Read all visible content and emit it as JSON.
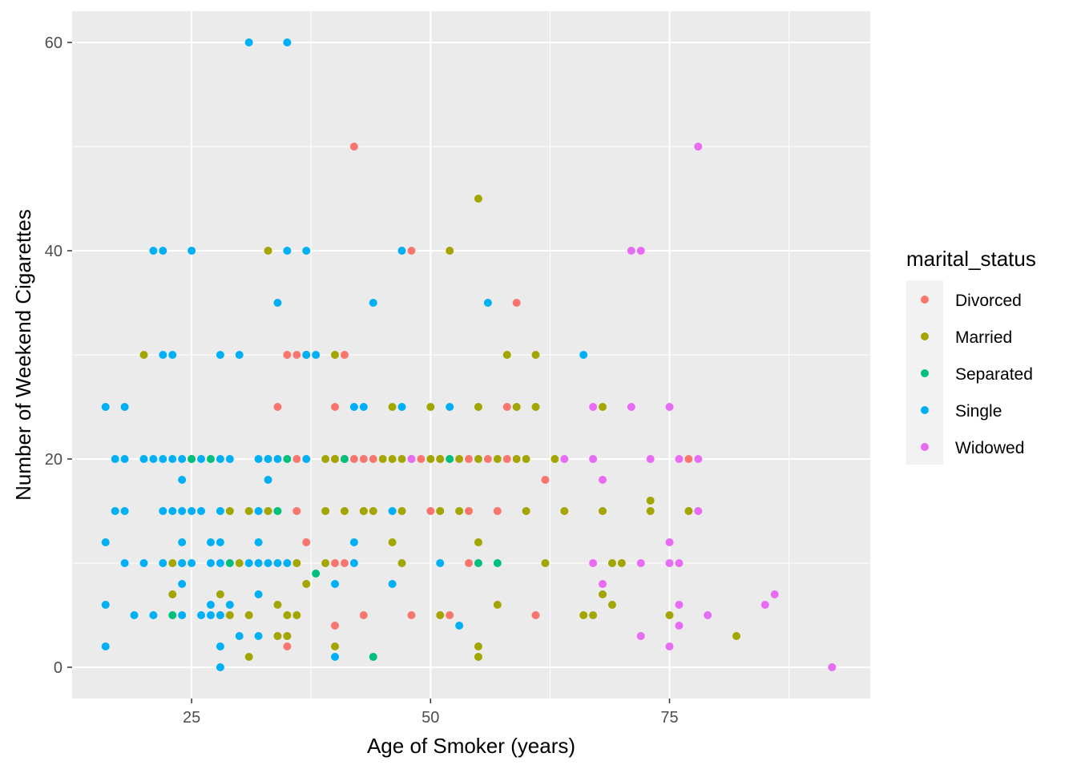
{
  "chart_data": {
    "type": "scatter",
    "xlabel": "Age of Smoker (years)",
    "ylabel": "Number of Weekend Cigarettes",
    "xlim": [
      12.5,
      96
    ],
    "ylim": [
      -3,
      63
    ],
    "x_ticks": [
      25,
      50,
      75
    ],
    "y_ticks": [
      0,
      20,
      40,
      60
    ],
    "grid": true,
    "legend": {
      "title": "marital_status",
      "position": "right"
    },
    "series": [
      {
        "name": "Divorced",
        "color": "#F8766D",
        "points": [
          [
            42,
            50
          ],
          [
            48,
            40
          ],
          [
            59,
            35
          ],
          [
            34,
            25
          ],
          [
            35,
            30
          ],
          [
            36,
            30
          ],
          [
            37,
            30
          ],
          [
            41,
            30
          ],
          [
            40,
            25
          ],
          [
            58,
            25
          ],
          [
            36,
            20
          ],
          [
            40,
            20
          ],
          [
            41,
            20
          ],
          [
            42,
            20
          ],
          [
            43,
            20
          ],
          [
            44,
            20
          ],
          [
            48,
            20
          ],
          [
            49,
            20
          ],
          [
            51,
            20
          ],
          [
            54,
            20
          ],
          [
            56,
            20
          ],
          [
            58,
            20
          ],
          [
            77,
            20
          ],
          [
            62,
            18
          ],
          [
            36,
            15
          ],
          [
            43,
            15
          ],
          [
            50,
            15
          ],
          [
            54,
            15
          ],
          [
            57,
            15
          ],
          [
            37,
            12
          ],
          [
            40,
            10
          ],
          [
            41,
            10
          ],
          [
            54,
            10
          ],
          [
            48,
            5
          ],
          [
            52,
            5
          ],
          [
            61,
            5
          ],
          [
            40,
            4
          ],
          [
            35,
            2
          ],
          [
            43,
            5
          ]
        ]
      },
      {
        "name": "Married",
        "color": "#A3A500",
        "points": [
          [
            55,
            45
          ],
          [
            33,
            40
          ],
          [
            52,
            40
          ],
          [
            20,
            30
          ],
          [
            40,
            30
          ],
          [
            58,
            30
          ],
          [
            61,
            30
          ],
          [
            46,
            25
          ],
          [
            50,
            25
          ],
          [
            55,
            25
          ],
          [
            59,
            25
          ],
          [
            61,
            25
          ],
          [
            68,
            25
          ],
          [
            33,
            20
          ],
          [
            39,
            20
          ],
          [
            40,
            20
          ],
          [
            45,
            20
          ],
          [
            46,
            20
          ],
          [
            47,
            20
          ],
          [
            50,
            20
          ],
          [
            51,
            20
          ],
          [
            53,
            20
          ],
          [
            55,
            20
          ],
          [
            57,
            20
          ],
          [
            59,
            20
          ],
          [
            60,
            20
          ],
          [
            63,
            20
          ],
          [
            25,
            20
          ],
          [
            29,
            15
          ],
          [
            31,
            15
          ],
          [
            33,
            15
          ],
          [
            39,
            15
          ],
          [
            41,
            15
          ],
          [
            44,
            15
          ],
          [
            47,
            15
          ],
          [
            51,
            15
          ],
          [
            53,
            15
          ],
          [
            60,
            15
          ],
          [
            64,
            15
          ],
          [
            68,
            15
          ],
          [
            73,
            15
          ],
          [
            77,
            15
          ],
          [
            73,
            16
          ],
          [
            46,
            12
          ],
          [
            55,
            12
          ],
          [
            23,
            10
          ],
          [
            24,
            10
          ],
          [
            30,
            10
          ],
          [
            36,
            10
          ],
          [
            39,
            10
          ],
          [
            47,
            10
          ],
          [
            62,
            10
          ],
          [
            69,
            10
          ],
          [
            70,
            10
          ],
          [
            23,
            7
          ],
          [
            28,
            7
          ],
          [
            37,
            8
          ],
          [
            68,
            7
          ],
          [
            34,
            6
          ],
          [
            57,
            6
          ],
          [
            69,
            6
          ],
          [
            28,
            5
          ],
          [
            29,
            5
          ],
          [
            31,
            5
          ],
          [
            35,
            5
          ],
          [
            36,
            5
          ],
          [
            51,
            5
          ],
          [
            66,
            5
          ],
          [
            67,
            5
          ],
          [
            75,
            5
          ],
          [
            34,
            3
          ],
          [
            35,
            3
          ],
          [
            82,
            3
          ],
          [
            31,
            1
          ],
          [
            40,
            2
          ],
          [
            55,
            2
          ],
          [
            55,
            1
          ],
          [
            43,
            15
          ]
        ]
      },
      {
        "name": "Separated",
        "color": "#00BF7D",
        "points": [
          [
            25,
            20
          ],
          [
            27,
            20
          ],
          [
            35,
            20
          ],
          [
            41,
            20
          ],
          [
            52,
            20
          ],
          [
            34,
            15
          ],
          [
            29,
            10
          ],
          [
            55,
            10
          ],
          [
            57,
            10
          ],
          [
            38,
            9
          ],
          [
            23,
            5
          ],
          [
            44,
            1
          ]
        ]
      },
      {
        "name": "Single",
        "color": "#00B0F6",
        "points": [
          [
            31,
            60
          ],
          [
            35,
            60
          ],
          [
            21,
            40
          ],
          [
            22,
            40
          ],
          [
            25,
            40
          ],
          [
            35,
            40
          ],
          [
            37,
            40
          ],
          [
            47,
            40
          ],
          [
            34,
            35
          ],
          [
            44,
            35
          ],
          [
            56,
            35
          ],
          [
            22,
            30
          ],
          [
            23,
            30
          ],
          [
            28,
            30
          ],
          [
            30,
            30
          ],
          [
            37,
            30
          ],
          [
            38,
            30
          ],
          [
            66,
            30
          ],
          [
            16,
            25
          ],
          [
            18,
            25
          ],
          [
            42,
            25
          ],
          [
            43,
            25
          ],
          [
            47,
            25
          ],
          [
            52,
            25
          ],
          [
            17,
            20
          ],
          [
            18,
            20
          ],
          [
            20,
            20
          ],
          [
            21,
            20
          ],
          [
            22,
            20
          ],
          [
            23,
            20
          ],
          [
            24,
            20
          ],
          [
            26,
            20
          ],
          [
            28,
            20
          ],
          [
            29,
            20
          ],
          [
            32,
            20
          ],
          [
            33,
            20
          ],
          [
            34,
            20
          ],
          [
            37,
            20
          ],
          [
            24,
            18
          ],
          [
            33,
            18
          ],
          [
            17,
            15
          ],
          [
            18,
            15
          ],
          [
            22,
            15
          ],
          [
            23,
            15
          ],
          [
            24,
            15
          ],
          [
            25,
            15
          ],
          [
            26,
            15
          ],
          [
            28,
            15
          ],
          [
            32,
            15
          ],
          [
            46,
            15
          ],
          [
            16,
            12
          ],
          [
            24,
            12
          ],
          [
            27,
            12
          ],
          [
            28,
            12
          ],
          [
            32,
            12
          ],
          [
            42,
            12
          ],
          [
            18,
            10
          ],
          [
            20,
            10
          ],
          [
            22,
            10
          ],
          [
            24,
            10
          ],
          [
            25,
            10
          ],
          [
            27,
            10
          ],
          [
            28,
            10
          ],
          [
            31,
            10
          ],
          [
            32,
            10
          ],
          [
            33,
            10
          ],
          [
            34,
            10
          ],
          [
            35,
            10
          ],
          [
            42,
            10
          ],
          [
            51,
            10
          ],
          [
            24,
            8
          ],
          [
            40,
            8
          ],
          [
            46,
            8
          ],
          [
            16,
            6
          ],
          [
            27,
            6
          ],
          [
            29,
            6
          ],
          [
            19,
            5
          ],
          [
            21,
            5
          ],
          [
            24,
            5
          ],
          [
            26,
            5
          ],
          [
            27,
            5
          ],
          [
            28,
            5
          ],
          [
            32,
            7
          ],
          [
            30,
            3
          ],
          [
            32,
            3
          ],
          [
            53,
            4
          ],
          [
            16,
            2
          ],
          [
            28,
            2
          ],
          [
            40,
            1
          ],
          [
            28,
            0
          ]
        ]
      },
      {
        "name": "Widowed",
        "color": "#E76BF3",
        "points": [
          [
            78,
            50
          ],
          [
            71,
            40
          ],
          [
            72,
            40
          ],
          [
            67,
            25
          ],
          [
            71,
            25
          ],
          [
            75,
            25
          ],
          [
            48,
            20
          ],
          [
            64,
            20
          ],
          [
            67,
            20
          ],
          [
            73,
            20
          ],
          [
            76,
            20
          ],
          [
            78,
            20
          ],
          [
            68,
            18
          ],
          [
            78,
            15
          ],
          [
            75,
            12
          ],
          [
            67,
            10
          ],
          [
            72,
            10
          ],
          [
            75,
            10
          ],
          [
            76,
            10
          ],
          [
            68,
            8
          ],
          [
            76,
            6
          ],
          [
            85,
            6
          ],
          [
            86,
            7
          ],
          [
            79,
            5
          ],
          [
            76,
            4
          ],
          [
            72,
            3
          ],
          [
            75,
            2
          ],
          [
            92,
            0
          ]
        ]
      }
    ]
  }
}
